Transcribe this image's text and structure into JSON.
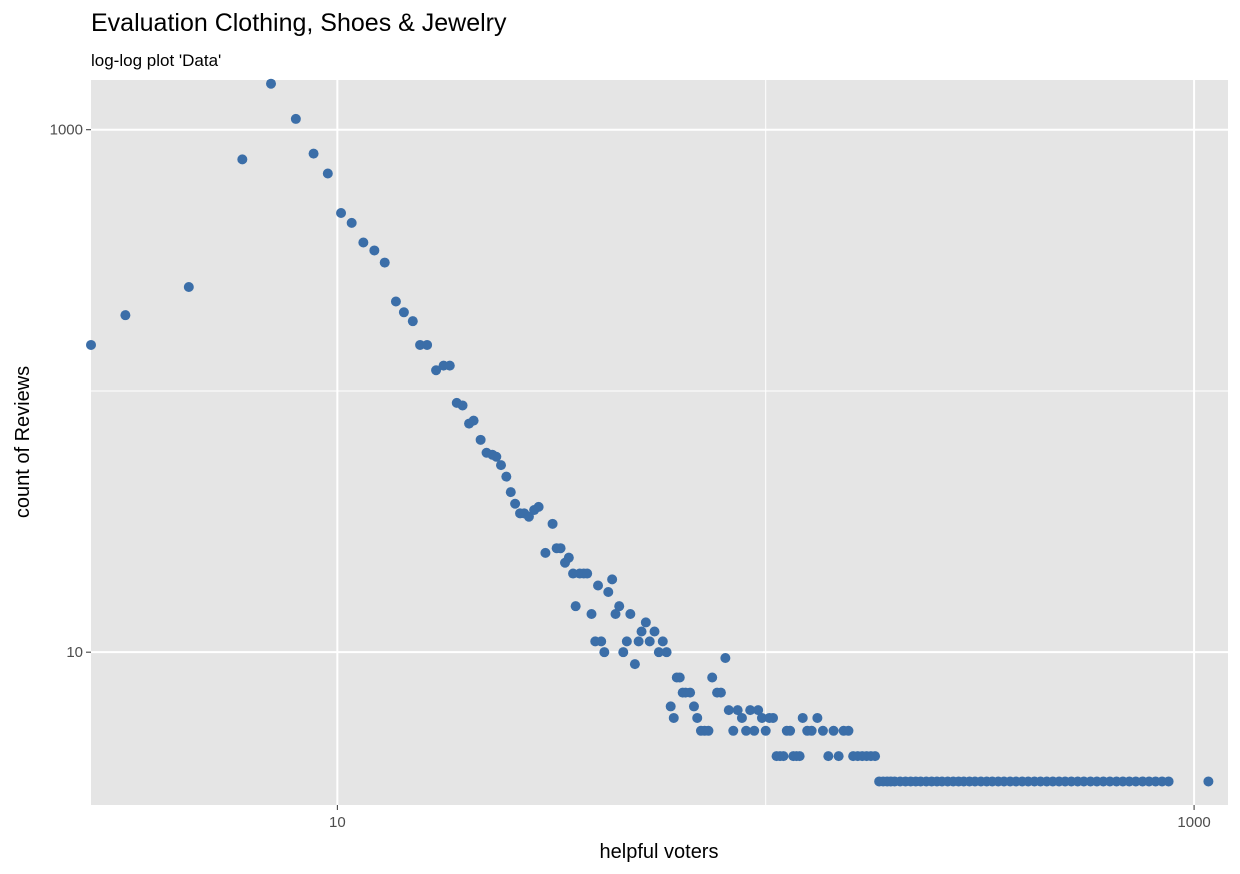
{
  "chart_data": {
    "type": "scatter",
    "title": "Evaluation Clothing, Shoes & Jewelry",
    "subtitle": "log-log plot 'Data'",
    "xlabel": "helpful voters",
    "ylabel": "count of Reviews",
    "x_scale": "log10",
    "y_scale": "log10",
    "xlim": [
      2.66,
      1200
    ],
    "ylim": [
      2.6,
      1550
    ],
    "x_ticks": [
      10,
      1000
    ],
    "x_tick_labels": [
      "10",
      "1000"
    ],
    "y_ticks": [
      10,
      1000
    ],
    "y_tick_labels": [
      "10",
      "1000"
    ],
    "grid": true,
    "point_color": "#3b6ea8",
    "panel_color": "#e5e5e5",
    "grid_color": "#ffffff",
    "points": [
      [
        2.66,
        150
      ],
      [
        3.2,
        195
      ],
      [
        4.5,
        250
      ],
      [
        6.0,
        770
      ],
      [
        7.0,
        1500
      ],
      [
        8.0,
        1100
      ],
      [
        8.8,
        810
      ],
      [
        9.5,
        680
      ],
      [
        10.2,
        480
      ],
      [
        10.8,
        440
      ],
      [
        11.5,
        370
      ],
      [
        12.2,
        345
      ],
      [
        12.9,
        310
      ],
      [
        13.7,
        220
      ],
      [
        14.3,
        200
      ],
      [
        15.0,
        185
      ],
      [
        15.6,
        150
      ],
      [
        16.2,
        150
      ],
      [
        17.0,
        120
      ],
      [
        17.7,
        125
      ],
      [
        18.3,
        125
      ],
      [
        19.0,
        90
      ],
      [
        19.6,
        88
      ],
      [
        20.3,
        75
      ],
      [
        20.8,
        77
      ],
      [
        21.6,
        65
      ],
      [
        22.3,
        58
      ],
      [
        23.0,
        57
      ],
      [
        23.5,
        56
      ],
      [
        24.1,
        52
      ],
      [
        24.8,
        47
      ],
      [
        25.4,
        41
      ],
      [
        26.0,
        37
      ],
      [
        26.7,
        34
      ],
      [
        27.3,
        34
      ],
      [
        28.0,
        33
      ],
      [
        28.8,
        35
      ],
      [
        29.5,
        36
      ],
      [
        30.6,
        24
      ],
      [
        31.8,
        31
      ],
      [
        32.5,
        25
      ],
      [
        33.2,
        25
      ],
      [
        34.0,
        22
      ],
      [
        34.7,
        23
      ],
      [
        35.5,
        20
      ],
      [
        36.0,
        15
      ],
      [
        36.8,
        20
      ],
      [
        37.6,
        20
      ],
      [
        38.3,
        20
      ],
      [
        39.2,
        14
      ],
      [
        40.0,
        11
      ],
      [
        40.6,
        18
      ],
      [
        41.3,
        11
      ],
      [
        42.0,
        10
      ],
      [
        42.9,
        17
      ],
      [
        43.8,
        19
      ],
      [
        44.6,
        14
      ],
      [
        45.5,
        15
      ],
      [
        46.5,
        10
      ],
      [
        47.4,
        11
      ],
      [
        48.3,
        14
      ],
      [
        49.5,
        9
      ],
      [
        50.5,
        11
      ],
      [
        51.3,
        12
      ],
      [
        52.5,
        13
      ],
      [
        53.6,
        11
      ],
      [
        55.0,
        12
      ],
      [
        56.3,
        10
      ],
      [
        57.5,
        11
      ],
      [
        58.7,
        10
      ],
      [
        60.0,
        6.2
      ],
      [
        61.0,
        5.6
      ],
      [
        62.0,
        8.0
      ],
      [
        63.0,
        8.0
      ],
      [
        64.0,
        7.0
      ],
      [
        65.0,
        7.0
      ],
      [
        66.6,
        7.0
      ],
      [
        68.0,
        6.2
      ],
      [
        69.2,
        5.6
      ],
      [
        70.6,
        5.0
      ],
      [
        72.0,
        5.0
      ],
      [
        73.5,
        5.0
      ],
      [
        75.0,
        8.0
      ],
      [
        77.0,
        7.0
      ],
      [
        78.6,
        7.0
      ],
      [
        80.5,
        9.5
      ],
      [
        82.0,
        6.0
      ],
      [
        84.0,
        5.0
      ],
      [
        86.0,
        6.0
      ],
      [
        88.0,
        5.6
      ],
      [
        90.0,
        5.0
      ],
      [
        92.0,
        6.0
      ],
      [
        94.0,
        5.0
      ],
      [
        96.0,
        6.0
      ],
      [
        98.0,
        5.6
      ],
      [
        100.0,
        5.0
      ],
      [
        102.0,
        5.6
      ],
      [
        104.0,
        5.6
      ],
      [
        106.0,
        4.0
      ],
      [
        108.0,
        4.0
      ],
      [
        110.0,
        4.0
      ],
      [
        112.0,
        5.0
      ],
      [
        114.0,
        5.0
      ],
      [
        116.0,
        4.0
      ],
      [
        118.0,
        4.0
      ],
      [
        120.0,
        4.0
      ],
      [
        122.0,
        5.6
      ],
      [
        125.0,
        5.0
      ],
      [
        128.0,
        5.0
      ],
      [
        132.0,
        5.6
      ],
      [
        136.0,
        5.0
      ],
      [
        140.0,
        4.0
      ],
      [
        144.0,
        5.0
      ],
      [
        148.0,
        4.0
      ],
      [
        152.0,
        5.0
      ],
      [
        156.0,
        5.0
      ],
      [
        160.0,
        4.0
      ],
      [
        164.0,
        4.0
      ],
      [
        168.0,
        4.0
      ],
      [
        172.0,
        4.0
      ],
      [
        176.0,
        4.0
      ],
      [
        180.0,
        4.0
      ],
      [
        184.0,
        3.2
      ],
      [
        188.0,
        3.2
      ],
      [
        192.0,
        3.2
      ],
      [
        196.0,
        3.2
      ],
      [
        200.0,
        3.2
      ],
      [
        206.0,
        3.2
      ],
      [
        212.0,
        3.2
      ],
      [
        218.0,
        3.2
      ],
      [
        224.0,
        3.2
      ],
      [
        230.0,
        3.2
      ],
      [
        237.0,
        3.2
      ],
      [
        244.0,
        3.2
      ],
      [
        251.0,
        3.2
      ],
      [
        258.0,
        3.2
      ],
      [
        266.0,
        3.2
      ],
      [
        274.0,
        3.2
      ],
      [
        282.0,
        3.2
      ],
      [
        290.0,
        3.2
      ],
      [
        299.0,
        3.2
      ],
      [
        308.0,
        3.2
      ],
      [
        318.0,
        3.2
      ],
      [
        328.0,
        3.2
      ],
      [
        338.0,
        3.2
      ],
      [
        349.0,
        3.2
      ],
      [
        360.0,
        3.2
      ],
      [
        372.0,
        3.2
      ],
      [
        384.0,
        3.2
      ],
      [
        397.0,
        3.2
      ],
      [
        410.0,
        3.2
      ],
      [
        424.0,
        3.2
      ],
      [
        438.0,
        3.2
      ],
      [
        453.0,
        3.2
      ],
      [
        468.0,
        3.2
      ],
      [
        484.0,
        3.2
      ],
      [
        500.0,
        3.2
      ],
      [
        517.0,
        3.2
      ],
      [
        535.0,
        3.2
      ],
      [
        553.0,
        3.2
      ],
      [
        573.0,
        3.2
      ],
      [
        593.0,
        3.2
      ],
      [
        614.0,
        3.2
      ],
      [
        636.0,
        3.2
      ],
      [
        659.0,
        3.2
      ],
      [
        682.0,
        3.2
      ],
      [
        706.0,
        3.2
      ],
      [
        731.0,
        3.2
      ],
      [
        758.0,
        3.2
      ],
      [
        785.0,
        3.2
      ],
      [
        813.0,
        3.2
      ],
      [
        842.0,
        3.2
      ],
      [
        872.0,
        3.2
      ],
      [
        1080.0,
        3.2
      ]
    ]
  }
}
